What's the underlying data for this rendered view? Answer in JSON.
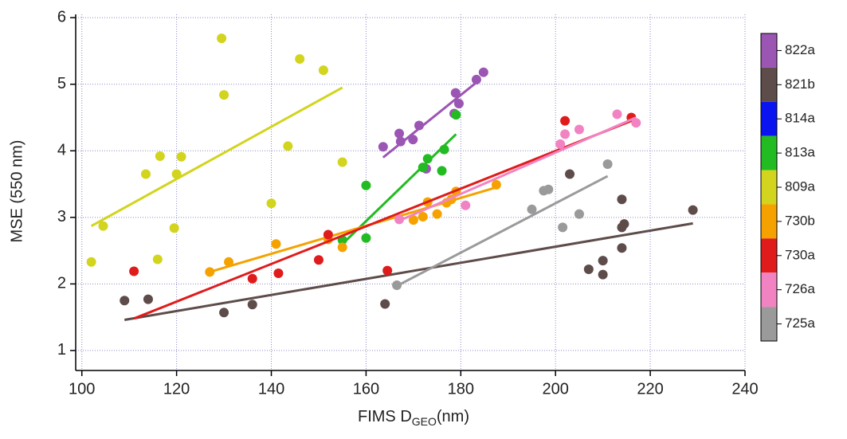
{
  "chart_data": {
    "type": "scatter",
    "y_label": "MSE (550 nm)",
    "x_label": {
      "main": "FIMS D",
      "sub": "GEO",
      "tail": "(nm)"
    },
    "xlim": [
      98.7,
      240
    ],
    "ylim": [
      0.7,
      6.05
    ],
    "xticks": [
      100,
      120,
      140,
      160,
      180,
      200,
      220,
      240
    ],
    "yticks": [
      1,
      2,
      3,
      4,
      5,
      6
    ],
    "grid": true,
    "series": [
      {
        "name": "822a",
        "color": "#9b55b3",
        "x": [
          163.6,
          167,
          167.3,
          169.9,
          171.2,
          172.7,
          178.6,
          178.9,
          179.6,
          183.3,
          184.8
        ],
        "y": [
          4.06,
          4.26,
          4.14,
          4.17,
          4.38,
          3.73,
          4.56,
          4.87,
          4.71,
          5.07,
          5.18
        ],
        "fit": {
          "x": [
            163.6,
            183.7
          ],
          "y": [
            3.9,
            5.05
          ]
        }
      },
      {
        "name": "821b",
        "color": "#5e4c4a",
        "x": [
          109,
          114,
          130,
          136,
          164,
          203,
          207,
          210,
          210,
          214,
          214,
          214,
          214.5,
          229
        ],
        "y": [
          1.75,
          1.77,
          1.57,
          1.69,
          1.7,
          3.65,
          2.22,
          2.35,
          2.14,
          2.54,
          2.85,
          3.27,
          2.9,
          3.11
        ],
        "fit": {
          "x": [
            109,
            229
          ],
          "y": [
            1.46,
            2.91
          ]
        }
      },
      {
        "name": "814a",
        "color": "#0a14f0",
        "x": [],
        "y": []
      },
      {
        "name": "813a",
        "color": "#22bb22",
        "x": [
          155,
          160,
          160,
          172,
          173,
          176,
          176.5,
          179
        ],
        "y": [
          2.66,
          2.69,
          3.48,
          3.75,
          3.88,
          3.7,
          4.02,
          4.54
        ],
        "fit": {
          "x": [
            155,
            179
          ],
          "y": [
            2.6,
            4.25
          ]
        }
      },
      {
        "name": "809a",
        "color": "#d2d41e",
        "x": [
          102,
          104.5,
          113.5,
          116,
          116.5,
          119.5,
          120,
          121,
          129.5,
          130,
          140,
          143.5,
          146,
          151,
          155
        ],
        "y": [
          2.33,
          2.87,
          3.65,
          2.37,
          3.92,
          2.84,
          3.65,
          3.91,
          5.69,
          4.84,
          3.21,
          4.07,
          5.38,
          5.21,
          3.83
        ],
        "fit": {
          "x": [
            102,
            155
          ],
          "y": [
            2.87,
            4.95
          ]
        }
      },
      {
        "name": "730b",
        "color": "#f5a200",
        "x": [
          127,
          131,
          141,
          152,
          155,
          170,
          172,
          173,
          175,
          177,
          178,
          179,
          187.5
        ],
        "y": [
          2.18,
          2.33,
          2.6,
          2.67,
          2.55,
          2.96,
          3.01,
          3.23,
          3.05,
          3.22,
          3.27,
          3.39,
          3.49
        ],
        "fit": {
          "x": [
            127,
            187.5
          ],
          "y": [
            2.18,
            3.45
          ]
        }
      },
      {
        "name": "730a",
        "color": "#e01b1b",
        "x": [
          111,
          136,
          141.5,
          150,
          152,
          164.5,
          202,
          216
        ],
        "y": [
          2.19,
          2.08,
          2.16,
          2.36,
          2.74,
          2.2,
          4.45,
          4.5
        ],
        "fit": {
          "x": [
            111,
            216
          ],
          "y": [
            1.48,
            4.45
          ]
        }
      },
      {
        "name": "726a",
        "color": "#f283c2",
        "x": [
          167,
          181,
          201,
          202,
          205,
          213,
          217
        ],
        "y": [
          2.97,
          3.18,
          4.1,
          4.25,
          4.32,
          4.55,
          4.42
        ],
        "fit": {
          "x": [
            167,
            217
          ],
          "y": [
            2.95,
            4.5
          ]
        }
      },
      {
        "name": "725a",
        "color": "#9a9a9a",
        "x": [
          166.5,
          195,
          197.5,
          198.5,
          201.5,
          205,
          211
        ],
        "y": [
          1.98,
          3.12,
          3.4,
          3.42,
          2.85,
          3.05,
          3.8
        ],
        "fit": {
          "x": [
            166.5,
            211
          ],
          "y": [
            1.97,
            3.62
          ]
        }
      }
    ]
  }
}
